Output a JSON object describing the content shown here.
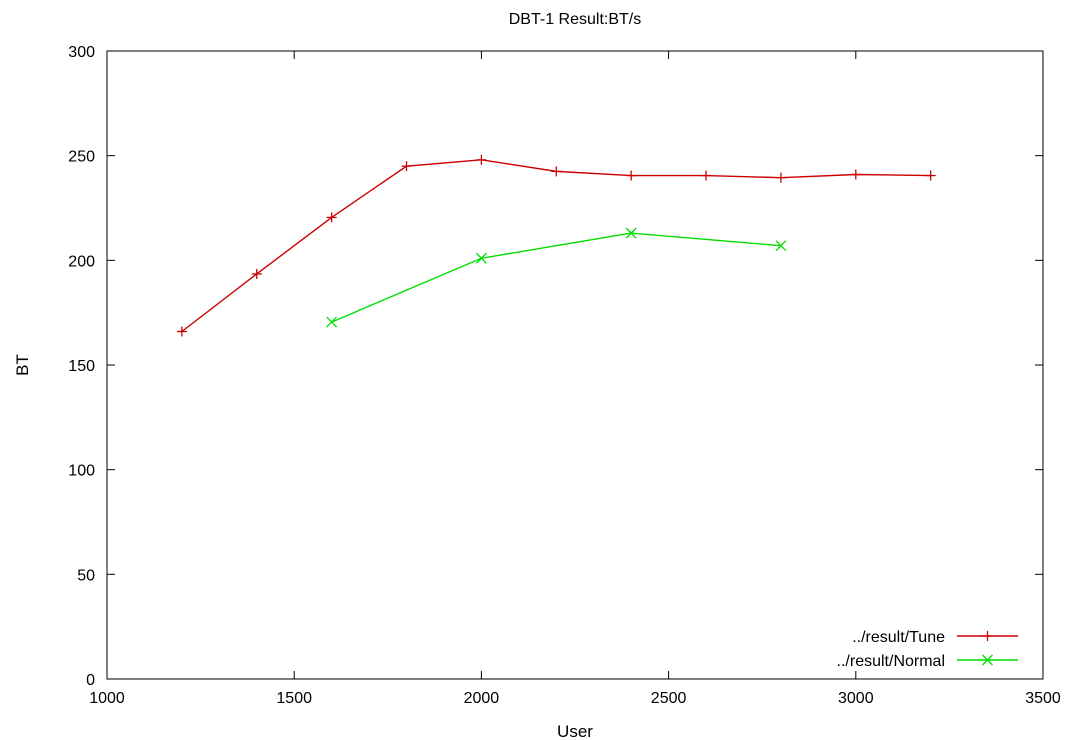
{
  "chart_data": {
    "type": "line",
    "title": "DBT-1 Result:BT/s",
    "xlabel": "User",
    "ylabel": "BT",
    "xlim": [
      1000,
      3500
    ],
    "ylim": [
      0,
      300
    ],
    "xticks": [
      1000,
      1500,
      2000,
      2500,
      3000,
      3500
    ],
    "yticks": [
      0,
      50,
      100,
      150,
      200,
      250,
      300
    ],
    "grid": false,
    "legend_position": "bottom-right",
    "series": [
      {
        "name": "../result/Tune",
        "color": "#cc0000",
        "marker": "plus",
        "x": [
          1200,
          1400,
          1600,
          1800,
          2000,
          2200,
          2400,
          2600,
          2800,
          3000,
          3200
        ],
        "y": [
          166,
          193.5,
          220.5,
          245,
          248,
          242.5,
          240.5,
          240.5,
          239.5,
          241,
          240.5
        ]
      },
      {
        "name": "../result/Normal",
        "color": "#00dd00",
        "marker": "cross",
        "x": [
          1600,
          2000,
          2400,
          2800
        ],
        "y": [
          170.5,
          201,
          213,
          207
        ]
      }
    ]
  }
}
